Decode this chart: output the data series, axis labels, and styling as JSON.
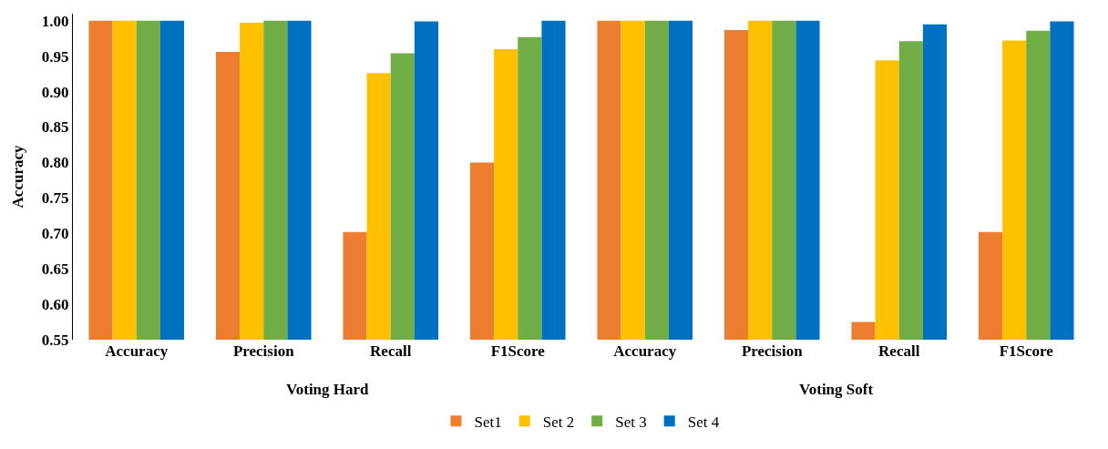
{
  "chart_data": {
    "type": "bar",
    "ylabel": "Accuracy",
    "categories": [
      "Accuracy",
      "Precision",
      "Recall",
      "F1Score",
      "Accuracy",
      "Precision",
      "Recall",
      "F1Score"
    ],
    "series": [
      {
        "name": "Set1",
        "color": "#ed7d31",
        "values": [
          1.0,
          0.956,
          0.702,
          0.8,
          1.0,
          0.987,
          0.575,
          0.702
        ]
      },
      {
        "name": "Set 2",
        "color": "#ffc000",
        "values": [
          1.0,
          0.997,
          0.926,
          0.96,
          1.0,
          1.0,
          0.944,
          0.972
        ]
      },
      {
        "name": "Set 3",
        "color": "#70ad47",
        "values": [
          1.0,
          1.0,
          0.954,
          0.977,
          1.0,
          1.0,
          0.971,
          0.986
        ]
      },
      {
        "name": "Set 4",
        "color": "#0070c0",
        "values": [
          1.0,
          1.0,
          0.999,
          1.0,
          1.0,
          1.0,
          0.995,
          0.999
        ]
      }
    ],
    "annotations": [
      "Voting Hard",
      "Voting Soft"
    ],
    "ylim": [
      0.55,
      1.01
    ],
    "yticks": [
      {
        "value": 0.55,
        "label": "0.55"
      },
      {
        "value": 0.6,
        "label": "0.60"
      },
      {
        "value": 0.65,
        "label": "0.65"
      },
      {
        "value": 0.7,
        "label": "0.70"
      },
      {
        "value": 0.75,
        "label": "0.75"
      },
      {
        "value": 0.8,
        "label": "0.80"
      },
      {
        "value": 0.85,
        "label": "0.85"
      },
      {
        "value": 0.9,
        "label": "0.90"
      },
      {
        "value": 0.95,
        "label": "0.95"
      },
      {
        "value": 1.0,
        "label": "1.00"
      }
    ],
    "legend": "bottom"
  }
}
